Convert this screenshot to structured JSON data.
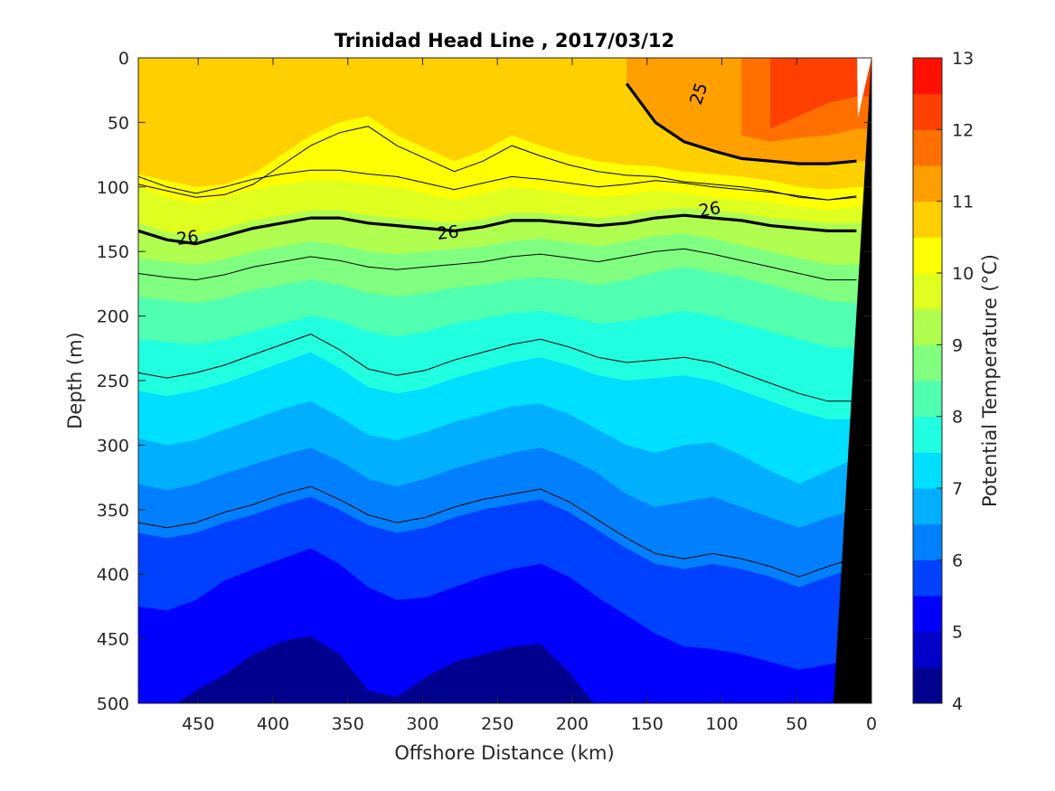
{
  "chart_data": {
    "type": "heatmap",
    "subtype": "filled-contour section",
    "title": "Trinidad Head Line , 2017/03/12",
    "xlabel": "Offshore Distance (km)",
    "ylabel": "Depth (m)",
    "colorbar_label": "Potential Temperature (°C)",
    "xlim": [
      490,
      0
    ],
    "x_reversed": true,
    "ylim": [
      500,
      0
    ],
    "y_reversed": true,
    "xticks": [
      450,
      400,
      350,
      300,
      250,
      200,
      150,
      100,
      50,
      0
    ],
    "yticks": [
      0,
      50,
      100,
      150,
      200,
      250,
      300,
      350,
      400,
      450,
      500
    ],
    "colorbar": {
      "min": 4,
      "max": 13,
      "step": 0.5,
      "ticks": [
        4,
        5,
        6,
        7,
        8,
        9,
        10,
        11,
        12,
        13
      ],
      "colors": [
        "#00008f",
        "#0000c8",
        "#0000ff",
        "#0040ff",
        "#0080ff",
        "#00b0ff",
        "#00dfff",
        "#20ffdf",
        "#50ffb0",
        "#80ff80",
        "#b0ff50",
        "#dfff20",
        "#ffff00",
        "#ffcf00",
        "#ff9f00",
        "#ff7000",
        "#ff4000",
        "#ff1000"
      ]
    },
    "temperature_levels": [
      {
        "t": 12.0,
        "depths": [
          null,
          null,
          null,
          null,
          null,
          null,
          null,
          null,
          null,
          null,
          null,
          null,
          null,
          null,
          null,
          null,
          null,
          null,
          null,
          null,
          null,
          null,
          55,
          45,
          35,
          30
        ]
      },
      {
        "t": 11.5,
        "depths": [
          null,
          null,
          null,
          null,
          null,
          null,
          null,
          null,
          null,
          null,
          null,
          null,
          null,
          null,
          null,
          null,
          null,
          null,
          null,
          null,
          null,
          60,
          65,
          62,
          60,
          55
        ]
      },
      {
        "t": 11.0,
        "depths": [
          null,
          null,
          null,
          null,
          null,
          null,
          null,
          null,
          null,
          null,
          null,
          null,
          null,
          null,
          null,
          null,
          null,
          20,
          50,
          65,
          72,
          78,
          80,
          82,
          82,
          80
        ]
      },
      {
        "t": 10.5,
        "depths": [
          90,
          95,
          100,
          98,
          90,
          75,
          60,
          50,
          45,
          60,
          70,
          80,
          72,
          60,
          68,
          75,
          80,
          83,
          84,
          88,
          90,
          92,
          95,
          100,
          102,
          100
        ]
      },
      {
        "t": 10.0,
        "depths": [
          100,
          108,
          113,
          108,
          102,
          98,
          95,
          95,
          98,
          100,
          105,
          110,
          105,
          100,
          102,
          105,
          108,
          106,
          103,
          105,
          108,
          110,
          112,
          115,
          118,
          115
        ]
      },
      {
        "t": 9.5,
        "depths": [
          128,
          135,
          138,
          132,
          126,
          122,
          118,
          118,
          122,
          124,
          126,
          128,
          125,
          120,
          120,
          122,
          124,
          122,
          118,
          116,
          118,
          120,
          124,
          126,
          128,
          128
        ]
      },
      {
        "t": 9.0,
        "depths": [
          155,
          158,
          160,
          156,
          150,
          146,
          142,
          145,
          150,
          152,
          150,
          148,
          146,
          142,
          140,
          143,
          146,
          142,
          138,
          136,
          140,
          145,
          150,
          155,
          160,
          160
        ]
      },
      {
        "t": 8.5,
        "depths": [
          185,
          188,
          190,
          186,
          180,
          176,
          172,
          176,
          182,
          185,
          182,
          178,
          176,
          172,
          170,
          172,
          176,
          172,
          166,
          162,
          166,
          170,
          176,
          182,
          188,
          190
        ]
      },
      {
        "t": 8.0,
        "depths": [
          218,
          220,
          222,
          218,
          212,
          206,
          200,
          204,
          212,
          216,
          212,
          206,
          202,
          198,
          196,
          200,
          206,
          204,
          200,
          196,
          200,
          206,
          212,
          218,
          224,
          225
        ]
      },
      {
        "t": 7.5,
        "depths": [
          258,
          262,
          258,
          252,
          244,
          236,
          228,
          240,
          255,
          260,
          256,
          248,
          242,
          236,
          232,
          238,
          246,
          250,
          248,
          246,
          250,
          258,
          266,
          274,
          280,
          280
        ]
      },
      {
        "t": 7.0,
        "depths": [
          295,
          300,
          296,
          288,
          280,
          272,
          266,
          278,
          292,
          296,
          290,
          282,
          276,
          270,
          268,
          276,
          288,
          300,
          306,
          300,
          298,
          308,
          320,
          330,
          320,
          310
        ]
      },
      {
        "t": 6.5,
        "depths": [
          330,
          335,
          330,
          322,
          315,
          308,
          302,
          312,
          326,
          332,
          326,
          318,
          312,
          306,
          302,
          310,
          322,
          338,
          348,
          344,
          340,
          348,
          356,
          364,
          356,
          350
        ]
      },
      {
        "t": 6.0,
        "depths": [
          368,
          372,
          368,
          360,
          354,
          346,
          340,
          350,
          362,
          368,
          364,
          356,
          350,
          346,
          342,
          352,
          366,
          380,
          392,
          396,
          392,
          396,
          402,
          410,
          402,
          395
        ]
      },
      {
        "t": 5.5,
        "depths": [
          425,
          428,
          420,
          405,
          396,
          388,
          380,
          392,
          410,
          420,
          418,
          410,
          402,
          396,
          392,
          402,
          418,
          432,
          446,
          456,
          458,
          462,
          468,
          474,
          470,
          465
        ]
      },
      {
        "t": 5.0,
        "depths": [
          510,
          505,
          490,
          478,
          462,
          452,
          448,
          462,
          490,
          495,
          480,
          468,
          462,
          456,
          454,
          476,
          504,
          510,
          510,
          510,
          510,
          510,
          510,
          510,
          510,
          510
        ]
      }
    ],
    "contour_lines": [
      {
        "label": "25",
        "bold": true
      },
      {
        "label": "26",
        "bold": true
      }
    ]
  }
}
